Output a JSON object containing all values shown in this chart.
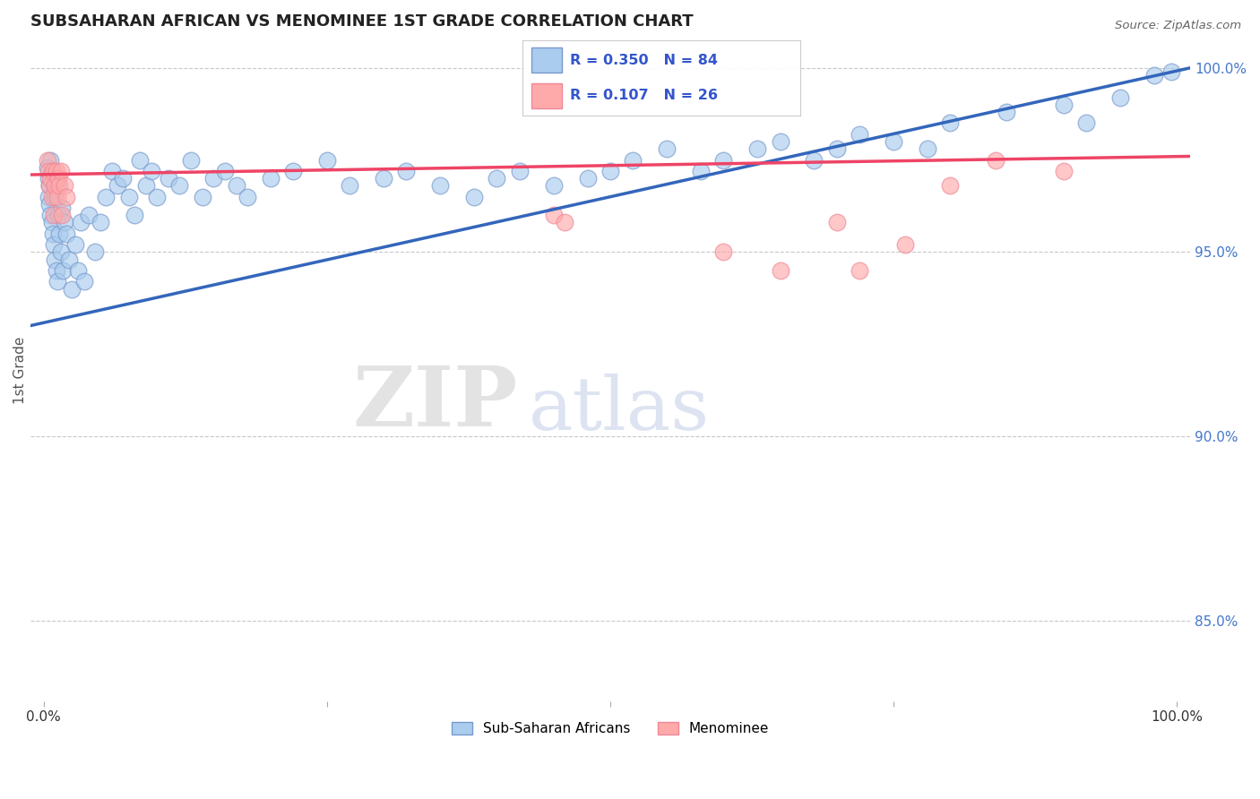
{
  "title": "SUBSAHARAN AFRICAN VS MENOMINEE 1ST GRADE CORRELATION CHART",
  "source": "Source: ZipAtlas.com",
  "ylabel": "1st Grade",
  "right_yticks": [
    0.85,
    0.9,
    0.95,
    1.0
  ],
  "right_ytick_labels": [
    "85.0%",
    "90.0%",
    "95.0%",
    "100.0%"
  ],
  "blue_label": "Sub-Saharan Africans",
  "pink_label": "Menominee",
  "blue_R": 0.35,
  "blue_N": 84,
  "pink_R": 0.107,
  "pink_N": 26,
  "blue_color": "#AACCEE",
  "pink_color": "#FFAAAA",
  "blue_edge_color": "#7799CC",
  "pink_edge_color": "#EE8899",
  "trend_blue_color": "#3366BB",
  "trend_pink_color": "#EE4466",
  "legend_text_color": "#3355CC",
  "blue_trend_y0": 0.93,
  "blue_trend_y1": 1.0,
  "pink_trend_y0": 0.971,
  "pink_trend_y1": 0.976,
  "dashed_line_y": 0.9985,
  "ylim_min": 0.828,
  "ylim_max": 1.008,
  "xlim_min": -0.012,
  "xlim_max": 1.012,
  "watermark_zip": "ZIP",
  "watermark_atlas": "atlas",
  "blue_x": [
    0.003,
    0.004,
    0.004,
    0.005,
    0.005,
    0.006,
    0.006,
    0.007,
    0.007,
    0.008,
    0.008,
    0.009,
    0.009,
    0.01,
    0.01,
    0.011,
    0.011,
    0.012,
    0.012,
    0.013,
    0.014,
    0.015,
    0.016,
    0.017,
    0.018,
    0.02,
    0.022,
    0.025,
    0.028,
    0.03,
    0.033,
    0.036,
    0.04,
    0.045,
    0.05,
    0.055,
    0.06,
    0.065,
    0.07,
    0.075,
    0.08,
    0.085,
    0.09,
    0.095,
    0.1,
    0.11,
    0.12,
    0.13,
    0.14,
    0.15,
    0.16,
    0.17,
    0.18,
    0.2,
    0.22,
    0.25,
    0.27,
    0.3,
    0.32,
    0.35,
    0.38,
    0.4,
    0.42,
    0.45,
    0.48,
    0.5,
    0.52,
    0.55,
    0.58,
    0.6,
    0.63,
    0.65,
    0.68,
    0.7,
    0.72,
    0.75,
    0.78,
    0.8,
    0.85,
    0.9,
    0.92,
    0.95,
    0.98,
    0.995
  ],
  "blue_y": [
    0.973,
    0.97,
    0.965,
    0.968,
    0.963,
    0.975,
    0.96,
    0.972,
    0.958,
    0.97,
    0.955,
    0.968,
    0.952,
    0.965,
    0.948,
    0.97,
    0.945,
    0.968,
    0.942,
    0.96,
    0.955,
    0.95,
    0.962,
    0.945,
    0.958,
    0.955,
    0.948,
    0.94,
    0.952,
    0.945,
    0.958,
    0.942,
    0.96,
    0.95,
    0.958,
    0.965,
    0.972,
    0.968,
    0.97,
    0.965,
    0.96,
    0.975,
    0.968,
    0.972,
    0.965,
    0.97,
    0.968,
    0.975,
    0.965,
    0.97,
    0.972,
    0.968,
    0.965,
    0.97,
    0.972,
    0.975,
    0.968,
    0.97,
    0.972,
    0.968,
    0.965,
    0.97,
    0.972,
    0.968,
    0.97,
    0.972,
    0.975,
    0.978,
    0.972,
    0.975,
    0.978,
    0.98,
    0.975,
    0.978,
    0.982,
    0.98,
    0.978,
    0.985,
    0.988,
    0.99,
    0.985,
    0.992,
    0.998,
    0.999
  ],
  "pink_x": [
    0.003,
    0.004,
    0.005,
    0.006,
    0.007,
    0.008,
    0.009,
    0.01,
    0.011,
    0.012,
    0.013,
    0.014,
    0.015,
    0.016,
    0.018,
    0.02,
    0.45,
    0.46,
    0.6,
    0.65,
    0.7,
    0.72,
    0.76,
    0.8,
    0.84,
    0.9
  ],
  "pink_y": [
    0.975,
    0.972,
    0.968,
    0.97,
    0.965,
    0.972,
    0.96,
    0.968,
    0.972,
    0.965,
    0.97,
    0.968,
    0.972,
    0.96,
    0.968,
    0.965,
    0.96,
    0.958,
    0.95,
    0.945,
    0.958,
    0.945,
    0.952,
    0.968,
    0.975,
    0.972
  ]
}
